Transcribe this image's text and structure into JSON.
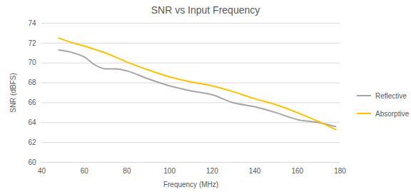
{
  "chart_data": {
    "type": "line",
    "title": "SNR vs Input Frequency",
    "x_label": "Frequency (MHz)",
    "y_label": "SNR (dBFS)",
    "x": [
      48,
      55,
      60,
      65,
      70,
      75,
      80,
      90,
      100,
      110,
      120,
      130,
      140,
      150,
      160,
      170,
      178
    ],
    "series": [
      {
        "name": "Reflective",
        "color": "#a5a5a5",
        "values": [
          71.3,
          71.0,
          70.6,
          69.8,
          69.4,
          69.4,
          69.2,
          68.4,
          67.7,
          67.2,
          66.8,
          66.0,
          65.6,
          65.0,
          64.3,
          64.0,
          63.6
        ]
      },
      {
        "name": "Absorptive",
        "color": "#ffc000",
        "values": [
          72.5,
          72.0,
          71.7,
          71.35,
          71.0,
          70.55,
          70.1,
          69.3,
          68.6,
          68.1,
          67.7,
          67.1,
          66.4,
          65.8,
          65.0,
          64.1,
          63.3
        ]
      }
    ],
    "xlim": [
      40,
      180
    ],
    "xticks": [
      40,
      60,
      80,
      100,
      120,
      140,
      160,
      180
    ],
    "ylim": [
      60,
      74
    ],
    "yticks": [
      60,
      62,
      64,
      66,
      68,
      70,
      72,
      74
    ],
    "grid": true,
    "legend": "right"
  }
}
